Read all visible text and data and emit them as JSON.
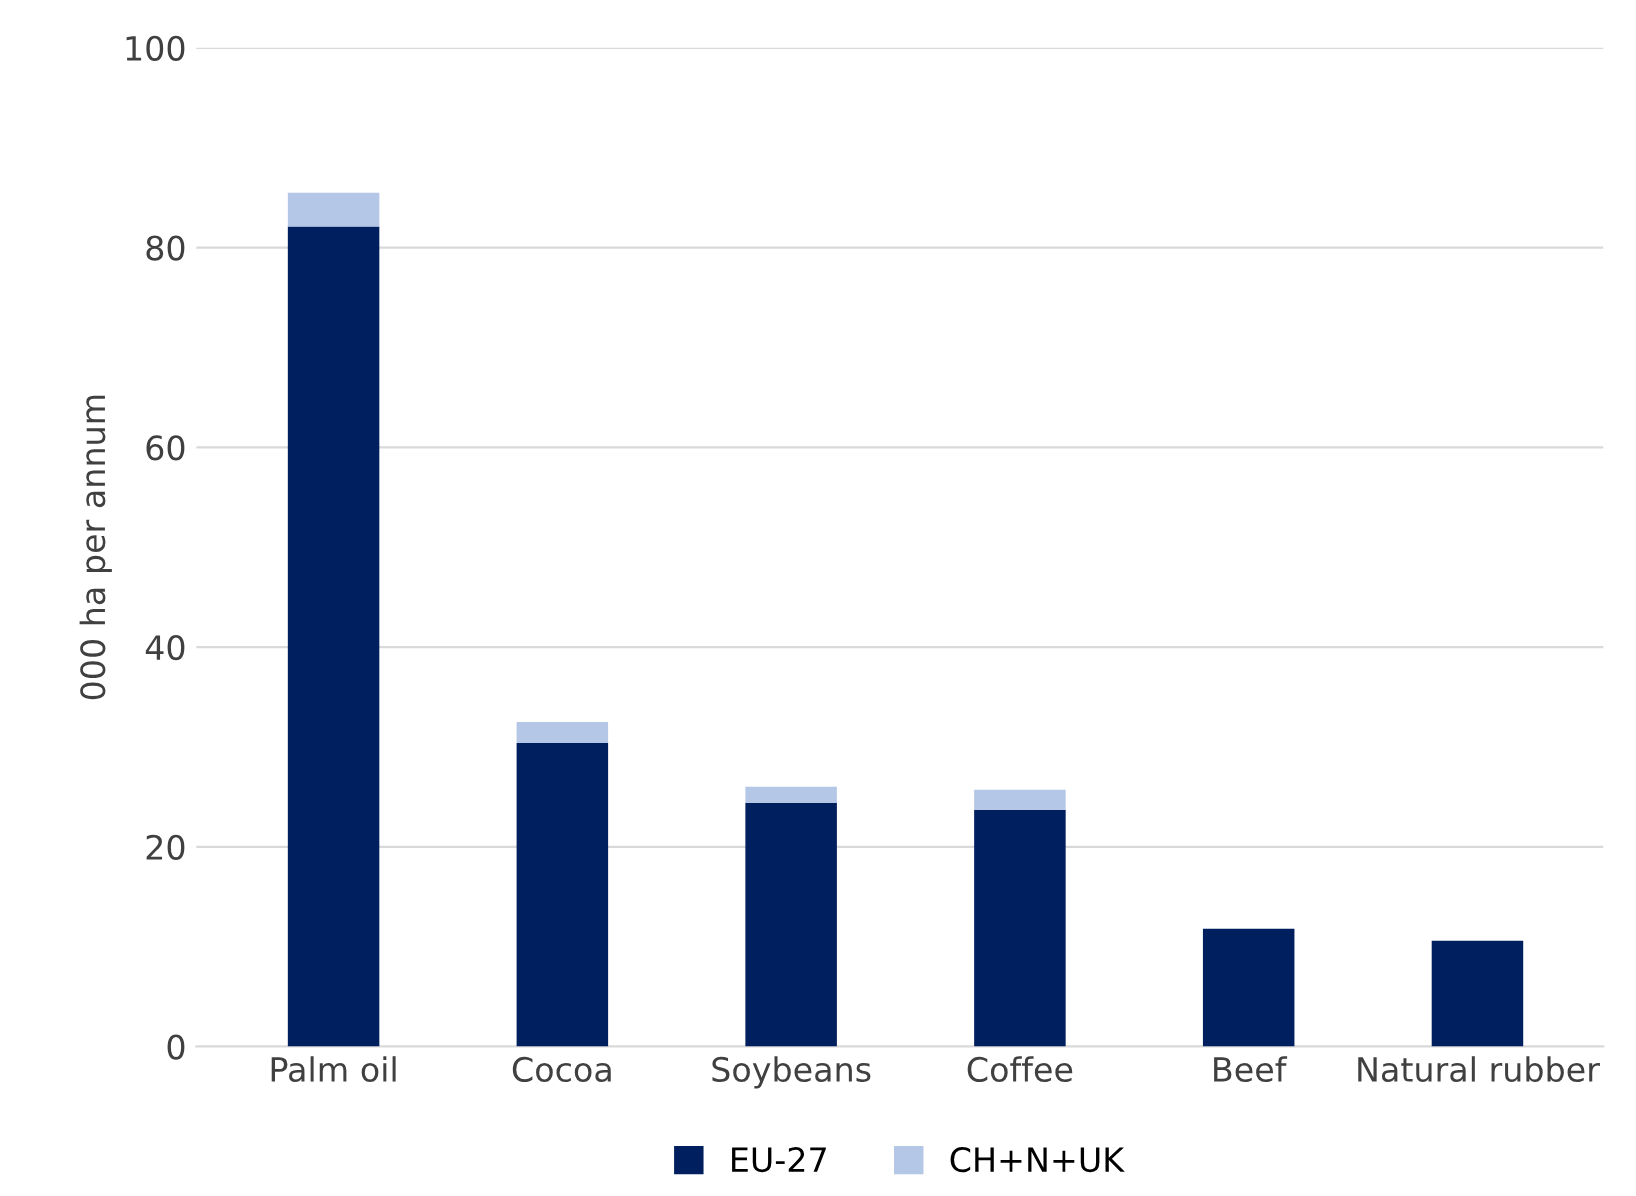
{
  "chart_data": {
    "type": "bar",
    "stacked": true,
    "ylabel": "000 ha per annum",
    "categories": [
      "Palm oil",
      "Cocoa",
      "Soybeans",
      "Coffee",
      "Beef",
      "Natural rubber"
    ],
    "series": [
      {
        "name": "EU-27",
        "color": "#001f5f",
        "values": [
          82.1,
          30.4,
          24.4,
          23.7,
          11.8,
          10.6
        ]
      },
      {
        "name": "CH+N+UK",
        "color": "#b4c7e7",
        "values": [
          3.4,
          2.1,
          1.6,
          2.0,
          0,
          0
        ]
      }
    ],
    "ylim": [
      0,
      100
    ],
    "yticks": [
      0,
      20,
      40,
      60,
      80,
      100
    ],
    "grid": "y",
    "legend": "bottom"
  }
}
